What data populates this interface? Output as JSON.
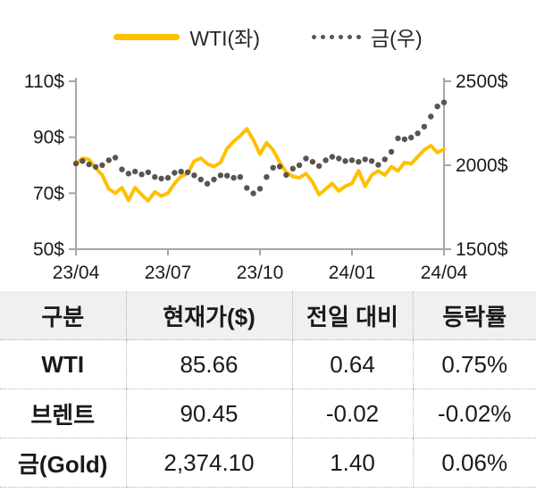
{
  "chart_data": {
    "type": "line",
    "x_categories": [
      "23/04",
      "23/07",
      "23/10",
      "24/01",
      "24/04"
    ],
    "left_axis": {
      "min": 50,
      "max": 110,
      "tick_values": [
        110,
        90,
        70,
        50
      ],
      "tick_labels": [
        "110$",
        "90$",
        "70$",
        "50$"
      ]
    },
    "right_axis": {
      "min": 1500,
      "max": 2500,
      "tick_values": [
        2500,
        2000,
        1500
      ],
      "tick_labels": [
        "2500$",
        "2000$",
        "1500$"
      ]
    },
    "grid": false,
    "legend_position": "top",
    "series": [
      {
        "name": "WTI(좌)",
        "axis": "left",
        "style": "solid",
        "color": "#FFC000",
        "values": [
          80.5,
          82.5,
          82.0,
          79.0,
          76.5,
          71.5,
          70.0,
          72.0,
          67.5,
          72.0,
          69.5,
          67.3,
          70.5,
          69.0,
          70.0,
          73.5,
          76.0,
          77.0,
          81.5,
          82.5,
          80.5,
          79.5,
          81.0,
          86.0,
          88.5,
          90.5,
          93.0,
          89.0,
          84.0,
          88.0,
          85.5,
          81.0,
          77.5,
          76.0,
          75.5,
          77.0,
          74.0,
          69.5,
          71.5,
          73.5,
          70.8,
          72.5,
          73.5,
          78.0,
          72.5,
          76.5,
          78.0,
          76.5,
          79.5,
          78.0,
          81.0,
          80.5,
          83.0,
          85.5,
          87.0,
          84.5,
          85.7
        ]
      },
      {
        "name": "금(우)",
        "axis": "right",
        "style": "dotted",
        "color": "#5A544E",
        "values": [
          2010,
          2025,
          2005,
          1990,
          2000,
          2030,
          2045,
          1975,
          1950,
          1962,
          1945,
          1958,
          1930,
          1920,
          1925,
          1955,
          1962,
          1958,
          1940,
          1915,
          1890,
          1915,
          1940,
          1938,
          1925,
          1930,
          1865,
          1832,
          1860,
          1930,
          1985,
          1992,
          1942,
          1980,
          2000,
          2040,
          2020,
          1995,
          2030,
          2050,
          2040,
          2025,
          2030,
          2020,
          2035,
          2025,
          2002,
          2035,
          2080,
          2160,
          2155,
          2165,
          2190,
          2230,
          2290,
          2350,
          2374
        ]
      }
    ]
  },
  "table": {
    "headers": [
      "구분",
      "현재가($)",
      "전일 대비",
      "등락률"
    ],
    "rows": [
      [
        "WTI",
        "85.66",
        "0.64",
        "0.75%"
      ],
      [
        "브렌트",
        "90.45",
        "-0.02",
        "-0.02%"
      ],
      [
        "금(Gold)",
        "2,374.10",
        "1.40",
        "0.06%"
      ]
    ]
  },
  "colors": {
    "wti_line": "#FFC000",
    "gold_dots": "#5A544E",
    "axis": "#A6A6A6",
    "header_bg": "#F1F0EF",
    "text": "#1A1A1A"
  }
}
